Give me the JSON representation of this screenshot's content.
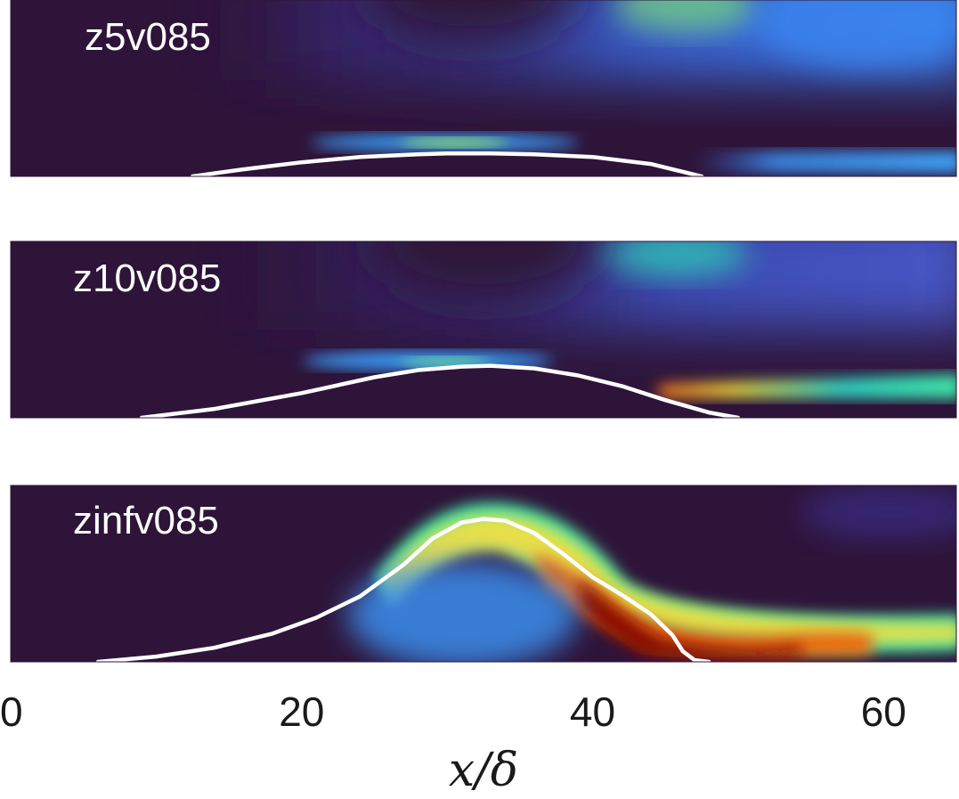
{
  "chart_data": {
    "type": "heatmap",
    "xlabel": "x/δ",
    "xlim": [
      0,
      65
    ],
    "xticks": [
      0,
      20,
      40,
      60
    ],
    "colormap": "turbo",
    "interface_color": "#ffffff",
    "background_color": "#2e1439",
    "panels": [
      {
        "label": "z5v085",
        "interface": {
          "x": [
            12.5,
            16,
            20,
            24,
            28,
            30,
            33,
            36,
            40,
            44,
            46,
            47.5
          ],
          "y": [
            0.0,
            0.04,
            0.08,
            0.11,
            0.125,
            0.13,
            0.13,
            0.125,
            0.11,
            0.07,
            0.03,
            0.0
          ]
        }
      },
      {
        "label": "z10v085",
        "interface": {
          "x": [
            9,
            14,
            20,
            25,
            28,
            31,
            33,
            36,
            39,
            42,
            45,
            48,
            50
          ],
          "y": [
            0.0,
            0.05,
            0.14,
            0.23,
            0.27,
            0.29,
            0.295,
            0.28,
            0.24,
            0.18,
            0.1,
            0.03,
            0.0
          ]
        }
      },
      {
        "label": "zinfv085",
        "interface": {
          "x": [
            6,
            10,
            14,
            18,
            21,
            24,
            27,
            29,
            31,
            32.5,
            34,
            36,
            38,
            40,
            42,
            44,
            45.5,
            46.2,
            47,
            48
          ],
          "y": [
            0.0,
            0.03,
            0.08,
            0.16,
            0.25,
            0.37,
            0.55,
            0.7,
            0.79,
            0.81,
            0.8,
            0.73,
            0.61,
            0.48,
            0.38,
            0.27,
            0.15,
            0.06,
            0.01,
            0.0
          ]
        }
      }
    ]
  }
}
